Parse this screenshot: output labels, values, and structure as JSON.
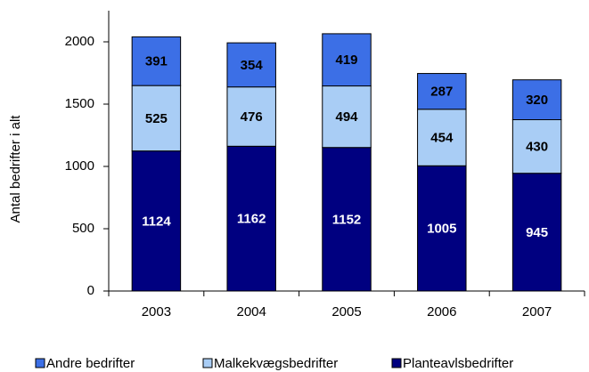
{
  "chart_data": {
    "type": "stacked_bar",
    "y_label": "Antal bedrifter i alt",
    "categories": [
      "2003",
      "2004",
      "2005",
      "2006",
      "2007"
    ],
    "series": [
      {
        "name": "Andre bedrifter",
        "color": "#3c6fe6",
        "label_color": "#000000",
        "values": [
          391,
          354,
          419,
          287,
          320
        ]
      },
      {
        "name": "Malkekvægsbedrifter",
        "color": "#a9cdf5",
        "label_color": "#000000",
        "values": [
          525,
          476,
          494,
          454,
          430
        ]
      },
      {
        "name": "Planteavlsbedrifter",
        "color": "#000080",
        "label_color": "#ffffff",
        "values": [
          1124,
          1162,
          1152,
          1005,
          945
        ]
      }
    ],
    "ylim": [
      0,
      2250
    ],
    "yticks": [
      0,
      500,
      1000,
      1500,
      2000
    ],
    "grid": false,
    "legend": "bottom"
  }
}
